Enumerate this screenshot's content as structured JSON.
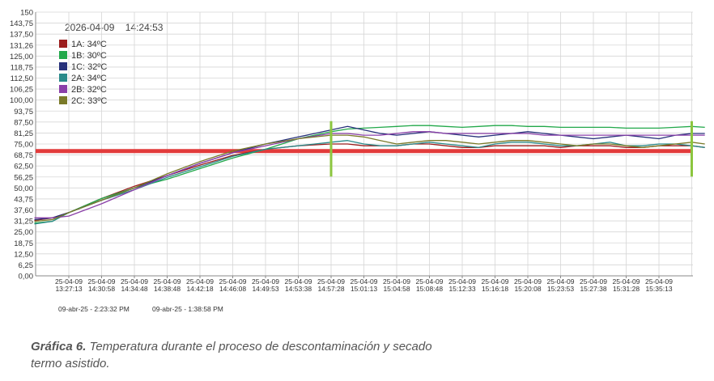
{
  "timestamp": "2026-04-09    14:24:53",
  "footer": {
    "left": "09-abr-25 - 2:23:32 PM",
    "right": "09-abr-25 - 1:38:58 PM"
  },
  "caption": {
    "label": "Gráfica 6.",
    "text": "Temperatura durante el proceso de descontaminación y secado termo asistido."
  },
  "chart_data": {
    "type": "line",
    "y_ticks": [
      "0,00",
      "6,25",
      "12,50",
      "18,75",
      "25,00",
      "31,25",
      "37,60",
      "43,75",
      "50,00",
      "56,25",
      "62,50",
      "68,75",
      "75,00",
      "81,25",
      "87,50",
      "93,75",
      "100,00",
      "106,25",
      "112,50",
      "118,75",
      "125,00",
      "131,26",
      "137,50",
      "143,75",
      "150"
    ],
    "ylim": [
      0,
      150
    ],
    "grid": true,
    "x_ticks": [
      [
        "25-04-09",
        "13:27:13"
      ],
      [
        "25-04-09",
        "14:30:58"
      ],
      [
        "25-04-09",
        "14:34:48"
      ],
      [
        "25-04-09",
        "14:38:48"
      ],
      [
        "25-04-09",
        "14:42:18"
      ],
      [
        "25-04-09",
        "14:46:08"
      ],
      [
        "25-04-09",
        "14:49:53"
      ],
      [
        "25-04-09",
        "14:53:38"
      ],
      [
        "25-04-09",
        "14:57:28"
      ],
      [
        "25-04-09",
        "15:01:13"
      ],
      [
        "25-04-09",
        "15:04:58"
      ],
      [
        "25-04-09",
        "15:08:48"
      ],
      [
        "25-04-09",
        "15:12:33"
      ],
      [
        "25-04-09",
        "15:16:18"
      ],
      [
        "25-04-09",
        "15:20:08"
      ],
      [
        "25-04-09",
        "15:23:53"
      ],
      [
        "25-04-09",
        "15:27:38"
      ],
      [
        "25-04-09",
        "15:31:28"
      ],
      [
        "25-04-09",
        "15:35:13"
      ]
    ],
    "legend_position": "top-left",
    "reference_line": {
      "value": 71,
      "color": "#e23b3b"
    },
    "markers": [
      {
        "x": 8.0,
        "color": "#8cc63f"
      },
      {
        "x": 19.0,
        "color": "#8cc63f"
      }
    ],
    "series": [
      {
        "name": "1A: 34ºC",
        "color": "#9b1c1c",
        "x": [
          -1.05,
          -0.5,
          0,
          1,
          2,
          3,
          4,
          5,
          6,
          7,
          8,
          8.5,
          9,
          9.5,
          10,
          10.5,
          11,
          11.5,
          12,
          12.5,
          13,
          13.5,
          14,
          14.5,
          15,
          15.5,
          16,
          16.5,
          17,
          17.5,
          18,
          18.5,
          19,
          19.4
        ],
        "y": [
          31.5,
          33,
          36,
          44,
          51,
          57,
          63,
          68.5,
          72,
          74,
          75,
          75,
          74,
          74,
          74,
          75,
          75,
          74,
          73,
          73,
          74,
          74,
          74,
          74,
          73,
          74,
          74,
          74,
          73,
          73,
          74,
          74,
          74,
          73
        ]
      },
      {
        "name": "1B: 30ºC",
        "color": "#22a84a",
        "x": [
          -1.05,
          -0.5,
          0,
          1,
          2,
          3,
          4,
          5,
          6,
          7,
          8,
          8.5,
          9,
          9.5,
          10,
          10.5,
          11,
          11.5,
          12,
          12.5,
          13,
          13.5,
          14,
          14.5,
          15,
          15.5,
          16,
          16.5,
          17,
          17.5,
          18,
          18.5,
          19,
          19.4
        ],
        "y": [
          30,
          31,
          36,
          44,
          50,
          55,
          61,
          67,
          72,
          78,
          82,
          83.5,
          84,
          84.5,
          85,
          85.5,
          85.5,
          85,
          84.5,
          85,
          85.5,
          85.5,
          85,
          85,
          84.5,
          84.5,
          84.5,
          84.5,
          84,
          84,
          84,
          84.5,
          85,
          84.5
        ]
      },
      {
        "name": "1C: 32ºC",
        "color": "#26307a",
        "x": [
          -1.05,
          -0.5,
          0,
          1,
          2,
          3,
          4,
          5,
          6,
          7,
          8,
          8.5,
          9,
          9.5,
          10,
          10.5,
          11,
          11.5,
          12,
          12.5,
          13,
          13.5,
          14,
          14.5,
          15,
          15.5,
          16,
          16.5,
          17,
          17.5,
          18,
          18.5,
          19,
          19.4
        ],
        "y": [
          32,
          33,
          36,
          43,
          50,
          57,
          64,
          70,
          75,
          79,
          83,
          85,
          83,
          81,
          80,
          81,
          82,
          81,
          80,
          79,
          80,
          81,
          82,
          81,
          80,
          79,
          78,
          79,
          80,
          79,
          78,
          80,
          81,
          81
        ]
      },
      {
        "name": "2A: 34ºC",
        "color": "#2a8a8a",
        "x": [
          -1.05,
          -0.5,
          0,
          1,
          2,
          3,
          4,
          5,
          6,
          7,
          8,
          8.5,
          9,
          9.5,
          10,
          10.5,
          11,
          11.5,
          12,
          12.5,
          13,
          13.5,
          14,
          14.5,
          15,
          15.5,
          16,
          16.5,
          17,
          17.5,
          18,
          18.5,
          19,
          19.4
        ],
        "y": [
          29.5,
          31,
          36,
          43,
          49,
          56,
          62,
          68,
          72,
          74,
          76,
          77,
          75,
          74,
          74,
          75,
          76,
          75,
          74,
          73,
          75,
          76,
          76,
          75,
          74,
          74,
          75,
          76,
          74,
          74,
          75,
          75,
          74,
          73
        ]
      },
      {
        "name": "2B: 32ºC",
        "color": "#8a3fa8",
        "x": [
          -1.05,
          -0.5,
          0,
          1,
          2,
          3,
          4,
          5,
          6,
          7,
          8,
          8.5,
          9,
          9.5,
          10,
          10.5,
          11,
          11.5,
          12,
          12.5,
          13,
          13.5,
          14,
          14.5,
          15,
          15.5,
          16,
          16.5,
          17,
          17.5,
          18,
          18.5,
          19,
          19.4
        ],
        "y": [
          33,
          33,
          34,
          41,
          49,
          57,
          64,
          70,
          74,
          78,
          81,
          81,
          80,
          80,
          81,
          82,
          82,
          81,
          81,
          81,
          81,
          81,
          81,
          80,
          80,
          80,
          80,
          80,
          80,
          80,
          80,
          80,
          80,
          80
        ]
      },
      {
        "name": "2C: 33ºC",
        "color": "#7a7a28",
        "x": [
          -1.05,
          -0.5,
          0,
          1,
          2,
          3,
          4,
          5,
          6,
          7,
          8,
          8.5,
          9,
          9.5,
          10,
          10.5,
          11,
          11.5,
          12,
          12.5,
          13,
          13.5,
          14,
          14.5,
          15,
          15.5,
          16,
          16.5,
          17,
          17.5,
          18,
          18.5,
          19,
          19.4
        ],
        "y": [
          31,
          32,
          36,
          43,
          50,
          58,
          65,
          71,
          75,
          78,
          80,
          80,
          79,
          77,
          75,
          76,
          77,
          77,
          76,
          75,
          76,
          77,
          77,
          76,
          75,
          74,
          75,
          75,
          74,
          73,
          74,
          75,
          76,
          75
        ]
      }
    ]
  }
}
